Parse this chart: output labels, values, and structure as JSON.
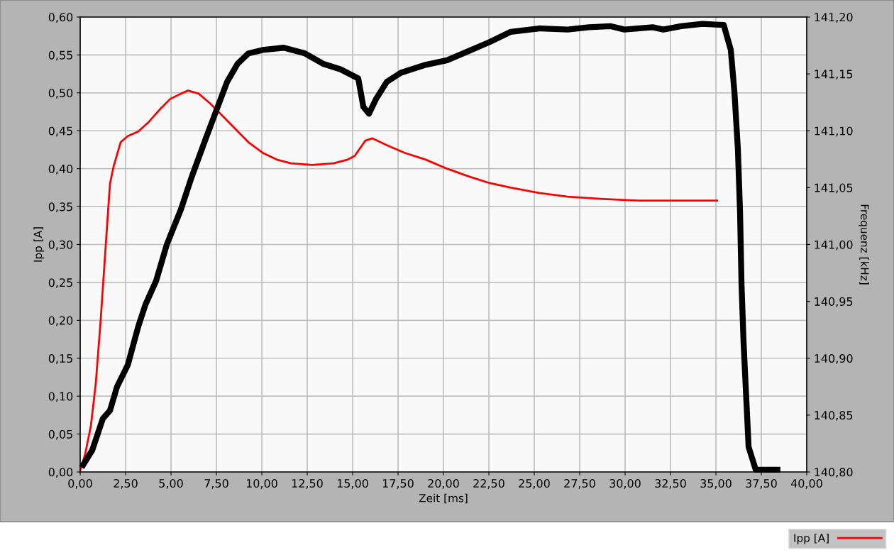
{
  "chart_data": {
    "type": "line",
    "xlabel": "Zeit [ms]",
    "ylabel": "Ipp [A]",
    "y2label": "Frequenz [kHz]",
    "xlim": [
      0,
      40
    ],
    "xticks": [
      {
        "value": 0,
        "label": "0,00"
      },
      {
        "value": 2.5,
        "label": "2,50"
      },
      {
        "value": 5,
        "label": "5,00"
      },
      {
        "value": 7.5,
        "label": "7,50"
      },
      {
        "value": 10,
        "label": "10,00"
      },
      {
        "value": 12.5,
        "label": "12,50"
      },
      {
        "value": 15,
        "label": "15,00"
      },
      {
        "value": 17.5,
        "label": "17,50"
      },
      {
        "value": 20,
        "label": "20,00"
      },
      {
        "value": 22.5,
        "label": "22,50"
      },
      {
        "value": 25,
        "label": "25,00"
      },
      {
        "value": 27.5,
        "label": "27,50"
      },
      {
        "value": 30,
        "label": "30,00"
      },
      {
        "value": 32.5,
        "label": "32,50"
      },
      {
        "value": 35,
        "label": "35,00"
      },
      {
        "value": 37.5,
        "label": "37,50"
      },
      {
        "value": 40,
        "label": "40,00"
      }
    ],
    "ylim": [
      0,
      0.6
    ],
    "yticks": [
      {
        "value": 0,
        "label": "0,00"
      },
      {
        "value": 0.05,
        "label": "0,05"
      },
      {
        "value": 0.1,
        "label": "0,10"
      },
      {
        "value": 0.15,
        "label": "0,15"
      },
      {
        "value": 0.2,
        "label": "0,20"
      },
      {
        "value": 0.25,
        "label": "0,25"
      },
      {
        "value": 0.3,
        "label": "0,30"
      },
      {
        "value": 0.35,
        "label": "0,35"
      },
      {
        "value": 0.4,
        "label": "0,40"
      },
      {
        "value": 0.45,
        "label": "0,45"
      },
      {
        "value": 0.5,
        "label": "0,50"
      },
      {
        "value": 0.55,
        "label": "0,55"
      },
      {
        "value": 0.6,
        "label": "0,60"
      }
    ],
    "y2lim": [
      140.8,
      141.2
    ],
    "y2ticks": [
      {
        "value": 140.8,
        "label": "140,80"
      },
      {
        "value": 140.85,
        "label": "140,85"
      },
      {
        "value": 140.9,
        "label": "140,90"
      },
      {
        "value": 140.95,
        "label": "140,95"
      },
      {
        "value": 141.0,
        "label": "141,00"
      },
      {
        "value": 141.05,
        "label": "141,05"
      },
      {
        "value": 141.1,
        "label": "141,10"
      },
      {
        "value": 141.15,
        "label": "141,15"
      },
      {
        "value": 141.2,
        "label": "141,20"
      }
    ],
    "grid": true,
    "legend": "bottom right",
    "series": [
      {
        "name": "Ipp [A]",
        "color": "#ff0000",
        "x": [
          0,
          0.27,
          0.59,
          0.86,
          1.13,
          1.45,
          1.64,
          1.84,
          2.23,
          2.62,
          3.2,
          3.79,
          4.38,
          4.96,
          5.55,
          5.94,
          6.52,
          7.11,
          7.7,
          8.48,
          9.26,
          10.04,
          10.82,
          11.6,
          12.77,
          13.95,
          14.73,
          15.12,
          15.7,
          16.09,
          16.88,
          17.85,
          19.02,
          20.2,
          21.37,
          22.54,
          23.71,
          25.27,
          26.84,
          28.79,
          30.74,
          32.7,
          35.12
        ],
        "values": [
          0.002,
          0.023,
          0.061,
          0.117,
          0.201,
          0.314,
          0.38,
          0.403,
          0.435,
          0.443,
          0.449,
          0.462,
          0.478,
          0.492,
          0.499,
          0.503,
          0.499,
          0.487,
          0.473,
          0.454,
          0.435,
          0.421,
          0.412,
          0.407,
          0.405,
          0.407,
          0.412,
          0.417,
          0.437,
          0.44,
          0.431,
          0.421,
          0.412,
          0.4,
          0.39,
          0.381,
          0.375,
          0.368,
          0.363,
          0.36,
          0.358,
          0.358,
          0.358
        ]
      },
      {
        "color": "#000000",
        "axis": "y2",
        "x": [
          0.08,
          0.66,
          1.25,
          1.64,
          2.03,
          2.62,
          3.2,
          3.59,
          4.18,
          4.77,
          5.55,
          6.13,
          6.91,
          7.5,
          8.09,
          8.67,
          9.26,
          10.04,
          11.21,
          12.38,
          13.36,
          14.34,
          15.31,
          15.59,
          15.9,
          16.29,
          16.88,
          17.66,
          19.02,
          20.2,
          21.37,
          22.54,
          23.71,
          25.27,
          26.84,
          28.01,
          29.18,
          29.96,
          31.52,
          32.11,
          33.09,
          34.26,
          35.43,
          35.82,
          36.02,
          36.21,
          36.33,
          36.41,
          36.52,
          36.8,
          37.19,
          38.55
        ],
        "values": [
          140.804,
          140.819,
          140.847,
          140.854,
          140.875,
          140.894,
          140.928,
          140.947,
          140.968,
          141.0,
          141.031,
          141.059,
          141.093,
          141.118,
          141.143,
          141.159,
          141.168,
          141.171,
          141.173,
          141.168,
          141.159,
          141.154,
          141.146,
          141.121,
          141.115,
          141.128,
          141.143,
          141.151,
          141.158,
          141.162,
          141.17,
          141.178,
          141.187,
          141.19,
          141.189,
          141.191,
          141.192,
          141.189,
          141.191,
          141.189,
          141.192,
          141.194,
          141.193,
          141.171,
          141.134,
          141.084,
          141.028,
          140.965,
          140.915,
          140.822,
          140.802,
          140.802
        ]
      }
    ]
  }
}
